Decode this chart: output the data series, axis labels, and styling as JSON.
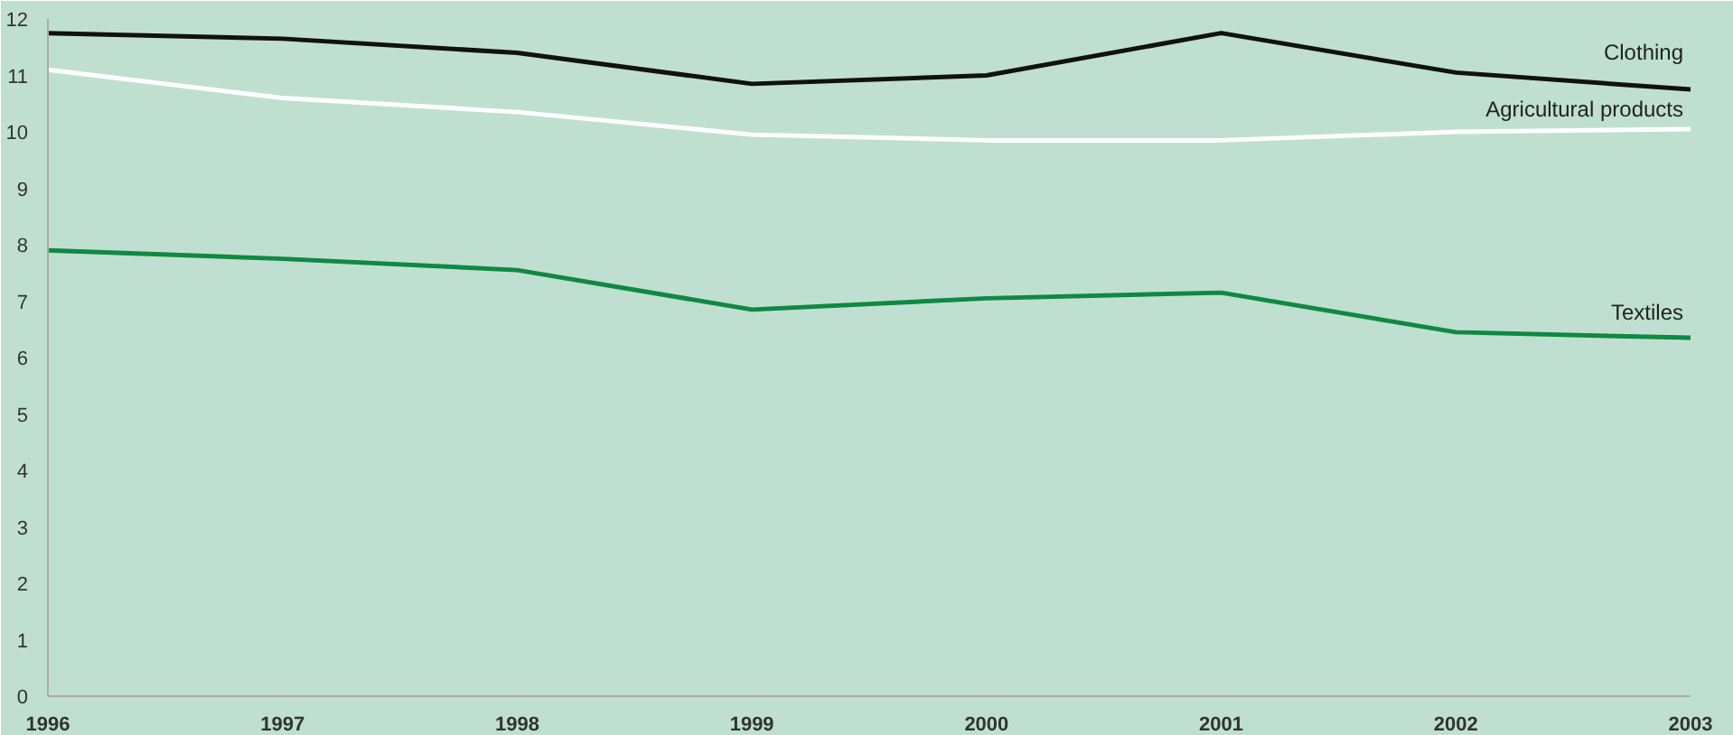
{
  "chart_data": {
    "type": "line",
    "x": [
      1996,
      1997,
      1998,
      1999,
      2000,
      2001,
      2002,
      2003
    ],
    "xlim": [
      1996,
      2003
    ],
    "xticks": [
      1996,
      1997,
      1998,
      1999,
      2000,
      2001,
      2002,
      2003
    ],
    "ylim": [
      0,
      12
    ],
    "yticks": [
      0,
      1,
      2,
      3,
      4,
      5,
      6,
      7,
      8,
      9,
      10,
      11,
      12
    ],
    "grid": false,
    "marker": "none",
    "line_style": "solid",
    "series": [
      {
        "name": "Clothing",
        "color": "#111111",
        "values": [
          11.75,
          11.65,
          11.4,
          10.85,
          11.0,
          11.75,
          11.05,
          10.75
        ]
      },
      {
        "name": "Agricultural products",
        "color": "#ffffff",
        "values": [
          11.1,
          10.6,
          10.35,
          9.95,
          9.85,
          9.85,
          10.0,
          10.05
        ]
      },
      {
        "name": "Textiles",
        "color": "#118844",
        "values": [
          7.9,
          7.75,
          7.55,
          6.85,
          7.05,
          7.15,
          6.45,
          6.35
        ]
      }
    ]
  }
}
